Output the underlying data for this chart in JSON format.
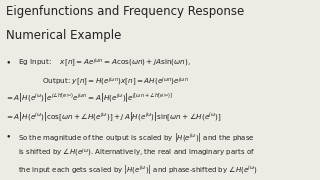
{
  "background_color": "#eeebe5",
  "title_line1": "Eigenfunctions and Frequency Response",
  "title_line2": "Numerical Example",
  "title_fontsize": 8.5,
  "body_fontsize": 5.5,
  "math_fontsize": 5.2,
  "text_color": "#222222"
}
